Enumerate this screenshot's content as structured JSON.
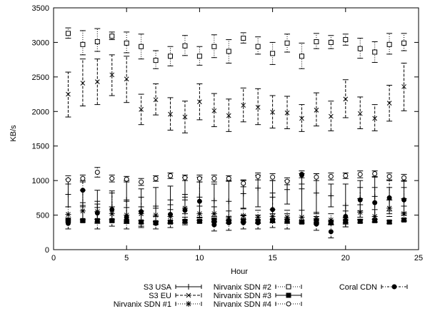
{
  "chart_data": {
    "type": "scatter",
    "title": "",
    "xlabel": "Hour",
    "ylabel": "KB/s",
    "xlim": [
      0,
      25
    ],
    "ylim": [
      0,
      3500
    ],
    "x_ticks": [
      "0",
      "5",
      "10",
      "15",
      "20",
      "25"
    ],
    "y_ticks": [
      "0",
      "500",
      "1000",
      "1500",
      "2000",
      "2500",
      "3000",
      "3500"
    ],
    "grid": false,
    "legend_position": "bottom",
    "x": [
      1,
      2,
      3,
      4,
      5,
      6,
      7,
      8,
      9,
      10,
      11,
      12,
      13,
      14,
      15,
      16,
      17,
      18,
      19,
      20,
      21,
      22,
      23,
      24
    ],
    "series": [
      {
        "name": "S3 USA",
        "marker": "plus",
        "line_style": "solid",
        "values": [
          800,
          640,
          610,
          620,
          720,
          560,
          630,
          650,
          760,
          760,
          710,
          700,
          810,
          890,
          760,
          870,
          880,
          820,
          780,
          640,
          740,
          770,
          720,
          740
        ],
        "low": [
          620,
          440,
          380,
          440,
          380,
          340,
          400,
          380,
          520,
          470,
          480,
          420,
          600,
          620,
          520,
          660,
          400,
          520,
          620,
          330,
          470,
          400,
          560,
          500
        ],
        "high": [
          1020,
          860,
          860,
          850,
          1000,
          880,
          900,
          920,
          1050,
          1050,
          950,
          1000,
          1000,
          1080,
          1000,
          1000,
          1100,
          1100,
          950,
          950,
          1000,
          1050,
          900,
          1000
        ]
      },
      {
        "name": "S3 EU",
        "marker": "x",
        "line_style": "dashed",
        "values": [
          2250,
          2410,
          2430,
          2530,
          2470,
          2030,
          2170,
          1960,
          1920,
          2140,
          2010,
          1940,
          2090,
          2060,
          1990,
          1980,
          1900,
          2020,
          1930,
          2180,
          1970,
          1900,
          2120,
          2360
        ],
        "low": [
          1920,
          2080,
          2100,
          2230,
          2130,
          1810,
          1950,
          1730,
          1690,
          1880,
          1780,
          1710,
          1850,
          1810,
          1760,
          1750,
          1710,
          1790,
          1720,
          1910,
          1750,
          1720,
          1860,
          2010
        ],
        "high": [
          2570,
          2760,
          2760,
          2820,
          2800,
          2250,
          2400,
          2200,
          2150,
          2400,
          2260,
          2180,
          2340,
          2330,
          2230,
          2220,
          2100,
          2270,
          2150,
          2460,
          2210,
          2100,
          2380,
          2700
        ]
      },
      {
        "name": "Nirvanix SDN #1",
        "marker": "asterisk",
        "line_style": "dotted",
        "values": [
          510,
          560,
          550,
          520,
          500,
          520,
          500,
          480,
          600,
          520,
          520,
          460,
          490,
          470,
          480,
          470,
          470,
          450,
          430,
          460,
          540,
          480,
          600,
          520
        ],
        "low": [
          420,
          420,
          440,
          420,
          410,
          420,
          410,
          390,
          470,
          420,
          410,
          380,
          400,
          380,
          390,
          380,
          380,
          370,
          360,
          370,
          440,
          400,
          480,
          420
        ],
        "high": [
          620,
          680,
          660,
          620,
          610,
          620,
          600,
          580,
          720,
          630,
          620,
          560,
          590,
          570,
          580,
          570,
          570,
          540,
          520,
          560,
          650,
          580,
          720,
          630
        ]
      },
      {
        "name": "Nirvanix SDN #2",
        "marker": "square-open",
        "line_style": "dotted",
        "values": [
          3130,
          2970,
          3010,
          3090,
          2990,
          2940,
          2740,
          2800,
          2950,
          2800,
          2940,
          2870,
          3060,
          2940,
          2840,
          2990,
          2800,
          3010,
          3000,
          3040,
          2910,
          2860,
          2970,
          2990
        ],
        "low": [
          3060,
          2820,
          2870,
          3040,
          2850,
          2760,
          2620,
          2660,
          2810,
          2670,
          2780,
          2700,
          2990,
          2830,
          2680,
          2860,
          2620,
          2910,
          2910,
          2960,
          2770,
          2710,
          2830,
          2880
        ],
        "high": [
          3210,
          3170,
          3200,
          3150,
          3150,
          3120,
          2880,
          2940,
          3100,
          2940,
          3110,
          3040,
          3140,
          3080,
          3000,
          3120,
          2990,
          3130,
          3100,
          3120,
          3060,
          3010,
          3130,
          3130
        ]
      },
      {
        "name": "Nirvanix SDN #3",
        "marker": "square-filled",
        "line_style": "solid",
        "values": [
          420,
          420,
          420,
          420,
          410,
          400,
          390,
          400,
          410,
          410,
          420,
          410,
          420,
          410,
          420,
          420,
          400,
          410,
          390,
          410,
          410,
          420,
          400,
          430
        ],
        "low": [
          400,
          400,
          400,
          400,
          390,
          380,
          370,
          380,
          390,
          390,
          400,
          390,
          400,
          390,
          400,
          400,
          380,
          390,
          370,
          390,
          390,
          400,
          380,
          410
        ],
        "high": [
          440,
          440,
          440,
          440,
          430,
          420,
          410,
          420,
          430,
          430,
          440,
          430,
          440,
          430,
          440,
          440,
          420,
          430,
          410,
          430,
          430,
          440,
          420,
          450
        ]
      },
      {
        "name": "Nirvanix SDN #4",
        "marker": "circle-open",
        "line_style": "dotted",
        "values": [
          1010,
          1030,
          1120,
          1030,
          1020,
          980,
          1030,
          1070,
          1040,
          1030,
          1030,
          1030,
          960,
          1060,
          1050,
          990,
          1090,
          1050,
          1060,
          1070,
          1090,
          1100,
          1060,
          1040
        ],
        "low": [
          950,
          980,
          1050,
          980,
          980,
          930,
          990,
          1030,
          1000,
          980,
          980,
          990,
          910,
          1010,
          1000,
          940,
          1040,
          1000,
          1010,
          1030,
          1040,
          1060,
          1010,
          990
        ],
        "high": [
          1070,
          1080,
          1190,
          1080,
          1060,
          1030,
          1070,
          1110,
          1080,
          1080,
          1080,
          1070,
          1010,
          1110,
          1100,
          1040,
          1140,
          1100,
          1110,
          1110,
          1140,
          1140,
          1110,
          1090
        ]
      },
      {
        "name": "Coral CDN",
        "marker": "circle-filled",
        "line_style": "dash-dot",
        "values": [
          380,
          860,
          530,
          580,
          470,
          550,
          380,
          510,
          570,
          700,
          360,
          390,
          390,
          390,
          580,
          410,
          1080,
          370,
          260,
          480,
          720,
          680,
          750,
          720
        ],
        "low": [
          300,
          620,
          300,
          340,
          300,
          320,
          300,
          320,
          360,
          460,
          270,
          280,
          300,
          300,
          320,
          300,
          950,
          280,
          170,
          330,
          560,
          440,
          520,
          540
        ],
        "high": [
          460,
          1000,
          700,
          820,
          700,
          760,
          480,
          720,
          800,
          980,
          460,
          480,
          500,
          500,
          820,
          520,
          1100,
          480,
          360,
          640,
          900,
          900,
          1000,
          900
        ]
      }
    ]
  }
}
